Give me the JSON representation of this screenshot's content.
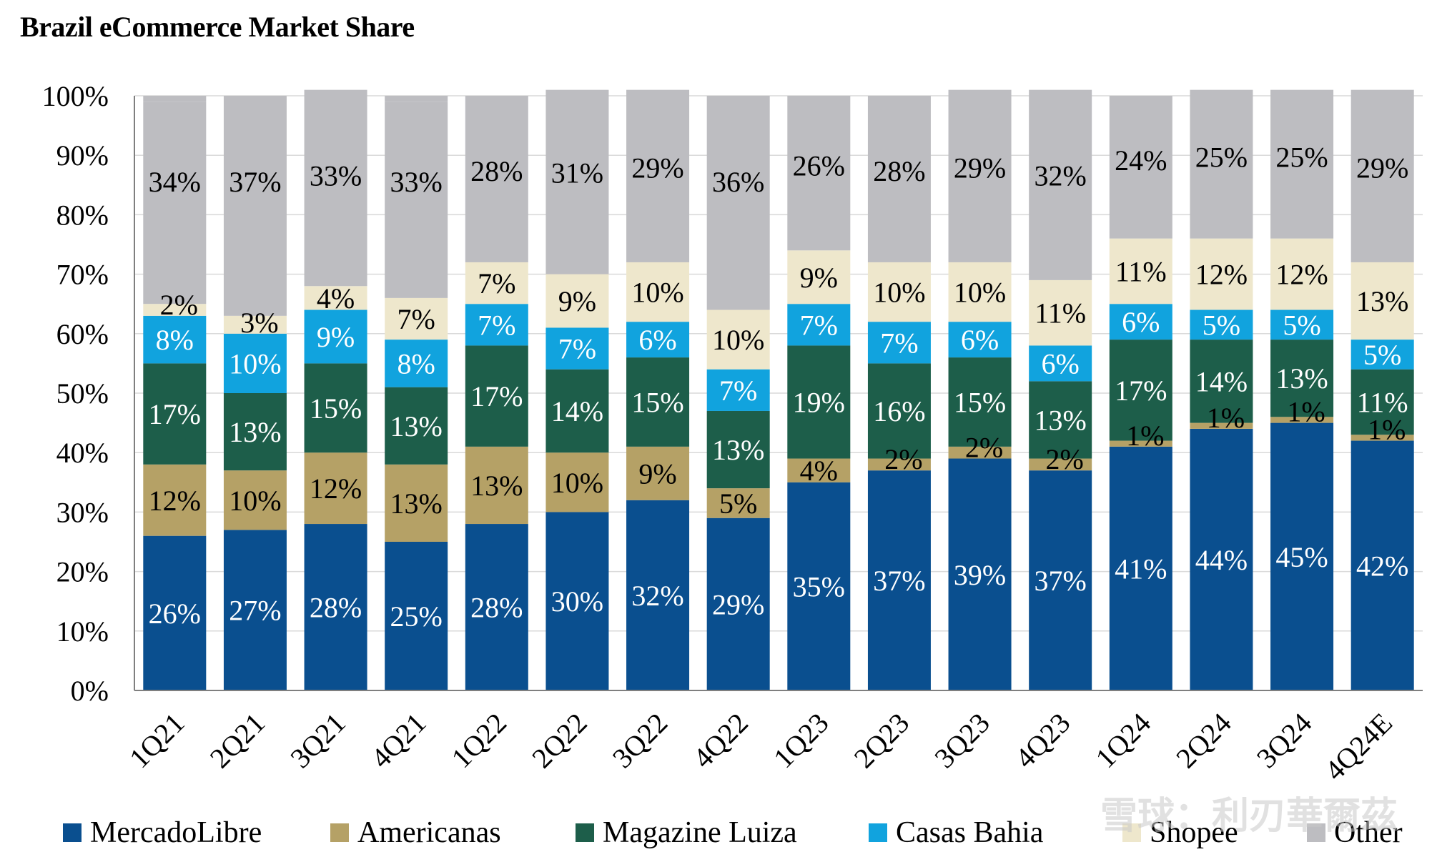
{
  "chart_data": {
    "type": "bar",
    "stacked": true,
    "title": "Brazil eCommerce Market Share",
    "xlabel": "",
    "ylabel": "",
    "ylim": [
      0,
      100
    ],
    "yticks": [
      "0%",
      "10%",
      "20%",
      "30%",
      "40%",
      "50%",
      "60%",
      "70%",
      "80%",
      "90%",
      "100%"
    ],
    "grid": "horizontal",
    "legend_position": "bottom",
    "categories": [
      "1Q21",
      "2Q21",
      "3Q21",
      "4Q21",
      "1Q22",
      "2Q22",
      "3Q22",
      "4Q22",
      "1Q23",
      "2Q23",
      "3Q23",
      "4Q23",
      "1Q24",
      "2Q24",
      "3Q24",
      "4Q24E"
    ],
    "series": [
      {
        "name": "MercadoLibre",
        "color": "#0A4F8F",
        "label_color": "#FFFFFF",
        "values": [
          26,
          27,
          28,
          25,
          28,
          30,
          32,
          29,
          35,
          37,
          39,
          37,
          41,
          44,
          45,
          42
        ]
      },
      {
        "name": "Americanas",
        "color": "#B5A166",
        "label_color": "#000000",
        "values": [
          12,
          10,
          12,
          13,
          13,
          10,
          9,
          5,
          4,
          2,
          2,
          2,
          1,
          1,
          1,
          1
        ]
      },
      {
        "name": "Magazine Luiza",
        "color": "#1D5E4A",
        "label_color": "#FFFFFF",
        "values": [
          17,
          13,
          15,
          13,
          17,
          14,
          15,
          13,
          19,
          16,
          15,
          13,
          17,
          14,
          13,
          11
        ]
      },
      {
        "name": "Casas Bahia",
        "color": "#11A3DE",
        "label_color": "#FFFFFF",
        "values": [
          8,
          10,
          9,
          8,
          7,
          7,
          6,
          7,
          7,
          7,
          6,
          6,
          6,
          5,
          5,
          5
        ]
      },
      {
        "name": "Shopee",
        "color": "#EEE7CC",
        "label_color": "#000000",
        "values": [
          2,
          3,
          4,
          7,
          7,
          9,
          10,
          10,
          9,
          10,
          10,
          11,
          11,
          12,
          12,
          13
        ]
      },
      {
        "name": "Other",
        "color": "#BDBDC1",
        "label_color": "#000000",
        "values": [
          34,
          37,
          33,
          33,
          28,
          31,
          29,
          36,
          26,
          28,
          29,
          32,
          24,
          25,
          25,
          29
        ]
      }
    ],
    "data_labels": "percent"
  },
  "watermark": {
    "text": "雪球：利刃華爾茲"
  }
}
